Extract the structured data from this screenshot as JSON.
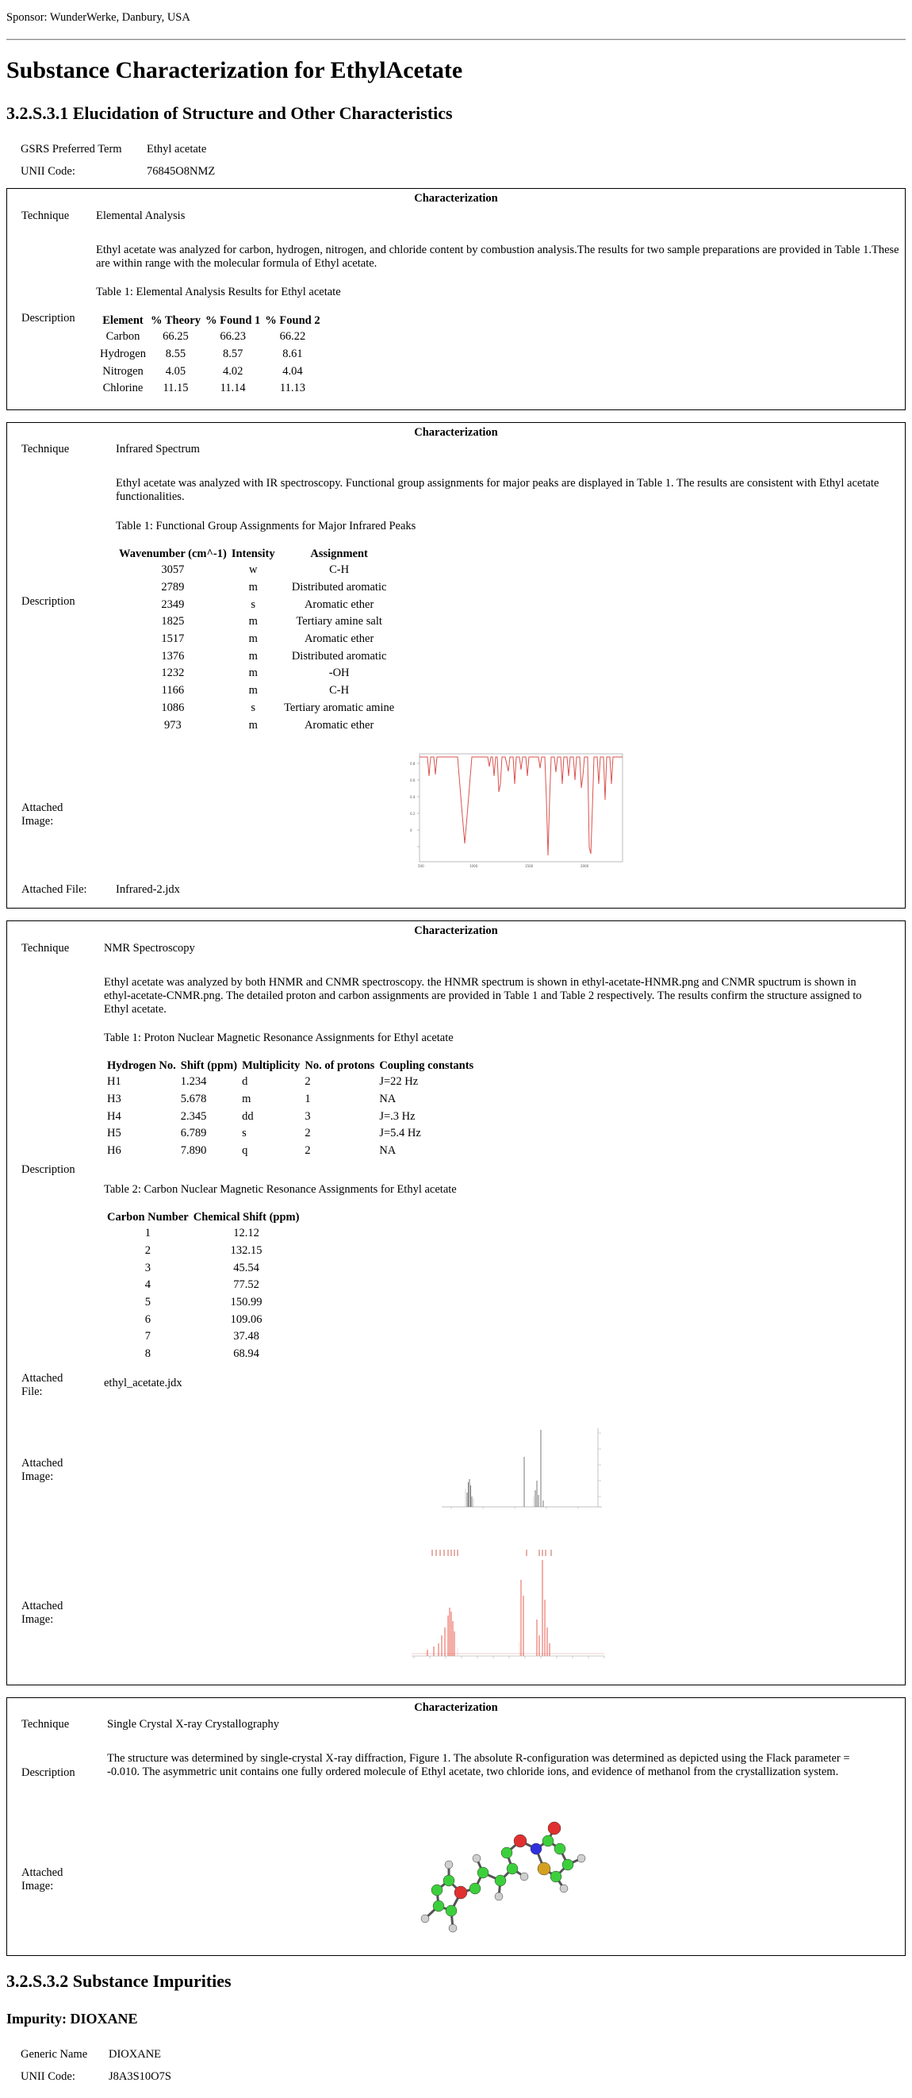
{
  "sponsor": "Sponsor: WunderWerke, Danbury, USA",
  "title": "Substance Characterization for EthylAcetate",
  "section1": "3.2.S.3.1 Elucidation of Structure and Other Characteristics",
  "gsrs_label": "GSRS Preferred Term",
  "gsrs_value": "Ethyl acetate",
  "unii_label": "UNII Code:",
  "unii_value": "76845O8NMZ",
  "labels": {
    "characterization": "Characterization",
    "technique": "Technique",
    "description": "Description",
    "attached_image": "Attached Image:",
    "attached_file": "Attached File:"
  },
  "char1": {
    "technique": "Elemental Analysis",
    "description": "Ethyl acetate was analyzed for carbon, hydrogen, nitrogen, and chloride content by combustion analysis.The results for two sample preparations are provided in Table 1.These are within range with the molecular formula of Ethyl acetate.",
    "table_caption": "Table 1: Elemental Analysis Results for Ethyl acetate",
    "headers": [
      "Element",
      "% Theory",
      "% Found 1",
      "% Found 2"
    ],
    "rows": [
      [
        "Carbon",
        "66.25",
        "66.23",
        "66.22"
      ],
      [
        "Hydrogen",
        "8.55",
        "8.57",
        "8.61"
      ],
      [
        "Nitrogen",
        "4.05",
        "4.02",
        "4.04"
      ],
      [
        "Chlorine",
        "11.15",
        "11.14",
        "11.13"
      ]
    ]
  },
  "char2": {
    "technique": "Infrared Spectrum",
    "description": "Ethyl acetate was analyzed with IR spectroscopy. Functional group assignments for major peaks are displayed in Table 1. The results are consistent with Ethyl acetate functionalities.",
    "table_caption": "Table 1: Functional Group Assignments for Major Infrared Peaks",
    "headers": [
      "Wavenumber (cm^-1)",
      "Intensity",
      "Assignment"
    ],
    "rows": [
      [
        "3057",
        "w",
        "C-H"
      ],
      [
        "2789",
        "m",
        "Distributed aromatic"
      ],
      [
        "2349",
        "s",
        "Aromatic ether"
      ],
      [
        "1825",
        "m",
        "Tertiary amine salt"
      ],
      [
        "1517",
        "m",
        "Aromatic ether"
      ],
      [
        "1376",
        "m",
        "Distributed aromatic"
      ],
      [
        "1232",
        "m",
        "-OH"
      ],
      [
        "1166",
        "m",
        "C-H"
      ],
      [
        "1086",
        "s",
        "Tertiary aromatic amine"
      ],
      [
        "973",
        "m",
        "Aromatic ether"
      ]
    ],
    "attached_file": "Infrared-2.jdx",
    "spectrum_color": "#d9534f"
  },
  "char3": {
    "technique": "NMR Spectroscopy",
    "description": "Ethyl acetate was analyzed by both HNMR and CNMR spectroscopy. the HNMR spectrum is shown in ethyl-acetate-HNMR.png and CNMR spuctrum is shown in ethyl-acetate-CNMR.png. The detailed proton and carbon assignments are provided in Table 1 and Table 2 respectively. The results confirm the structure assigned to Ethyl acetate.",
    "table1_caption": "Table 1: Proton Nuclear Magnetic Resonance Assignments for Ethyl acetate",
    "table1_headers": [
      "Hydrogen No.",
      "Shift (ppm)",
      "Multiplicity",
      "No. of protons",
      "Coupling constants"
    ],
    "table1_rows": [
      [
        "H1",
        "1.234",
        "d",
        "2",
        "J=22 Hz"
      ],
      [
        "H3",
        "5.678",
        "m",
        "1",
        "NA"
      ],
      [
        "H4",
        "2.345",
        "dd",
        "3",
        "J=.3 Hz"
      ],
      [
        "H5",
        "6.789",
        "s",
        "2",
        "J=5.4 Hz"
      ],
      [
        "H6",
        "7.890",
        "q",
        "2",
        "NA"
      ]
    ],
    "table2_caption": "Table 2: Carbon Nuclear Magnetic Resonance Assignments for Ethyl acetate",
    "table2_headers": [
      "Carbon Number",
      "Chemical Shift (ppm)"
    ],
    "table2_rows": [
      [
        "1",
        "12.12"
      ],
      [
        "2",
        "132.15"
      ],
      [
        "3",
        "45.54"
      ],
      [
        "4",
        "77.52"
      ],
      [
        "5",
        "150.99"
      ],
      [
        "6",
        "109.06"
      ],
      [
        "7",
        "37.48"
      ],
      [
        "8",
        "68.94"
      ]
    ],
    "attached_file": "ethyl_acetate.jdx",
    "attached_file_label": "Attached File:"
  },
  "char4": {
    "technique": "Single Crystal X-ray Crystallography",
    "description": "The structure was determined by single-crystal X-ray diffraction, Figure 1. The absolute R-configuration was determined as depicted using the Flack parameter = -0.010. The asymmetric unit contains one fully ordered molecule of Ethyl acetate, two chloride ions, and evidence of methanol from the crystallization system."
  },
  "section2": "3.2.S.3.2 Substance Impurities",
  "impurity_title": "Impurity: DIOXANE",
  "generic_label": "Generic Name",
  "generic_value": "DIOXANE",
  "unii2_label": "UNII Code:",
  "unii2_value": "J8A3S10O7S"
}
